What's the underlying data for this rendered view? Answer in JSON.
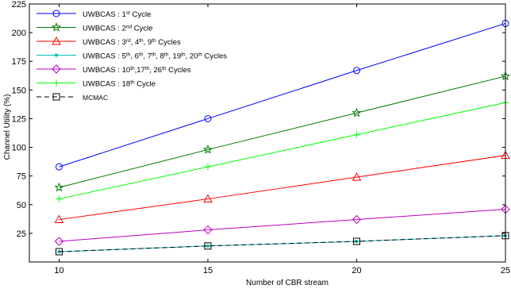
{
  "chart_data": {
    "type": "line",
    "title": "",
    "xlabel": "Number of CBR stream",
    "ylabel": "Channel Utility (%)",
    "x": [
      10,
      15,
      20,
      25
    ],
    "xlim": [
      9,
      25
    ],
    "ylim": [
      0,
      225
    ],
    "xticks": [
      "10",
      "15",
      "20",
      "25"
    ],
    "yticks": [
      "25",
      "50",
      "75",
      "100",
      "125",
      "150",
      "175",
      "200",
      "225"
    ],
    "grid": false,
    "legend_position": "top-left",
    "series": [
      {
        "name": "UWBCAS : 1st Cycle",
        "legend": [
          {
            "t": "UWBCAS : 1"
          },
          {
            "t": "st",
            "sup": true
          },
          {
            "t": " Cycle"
          }
        ],
        "values": [
          83,
          125,
          167,
          208
        ],
        "color": "#0000ff",
        "marker": "circle",
        "dash": "solid"
      },
      {
        "name": "UWBCAS : 2nd Cycle",
        "legend": [
          {
            "t": "UWBCAS : 2"
          },
          {
            "t": "nd",
            "sup": true
          },
          {
            "t": " Cycle"
          }
        ],
        "values": [
          65,
          98,
          130,
          162
        ],
        "color": "#007a00",
        "marker": "star",
        "dash": "solid"
      },
      {
        "name": "UWBCAS : 3rd, 4th, 9th Cycles",
        "legend": [
          {
            "t": "UWBCAS : 3"
          },
          {
            "t": "rd",
            "sup": true
          },
          {
            "t": ", 4"
          },
          {
            "t": "th",
            "sup": true
          },
          {
            "t": ", 9"
          },
          {
            "t": "th",
            "sup": true
          },
          {
            "t": " Cycles"
          }
        ],
        "values": [
          37,
          55,
          74,
          93
        ],
        "color": "#ff0000",
        "marker": "triangle",
        "dash": "solid"
      },
      {
        "name": "UWBCAS : 5th, 6th, 7th, 8th, 19th, 20th Cycles",
        "legend": [
          {
            "t": "UWBCAS : 5"
          },
          {
            "t": "th",
            "sup": true
          },
          {
            "t": ", 6"
          },
          {
            "t": "th",
            "sup": true
          },
          {
            "t": ", 7"
          },
          {
            "t": "th",
            "sup": true
          },
          {
            "t": ", 8"
          },
          {
            "t": "th",
            "sup": true
          },
          {
            "t": ", 19"
          },
          {
            "t": "th",
            "sup": true
          },
          {
            "t": ", 20"
          },
          {
            "t": "th",
            "sup": true
          },
          {
            "t": " Cycles"
          }
        ],
        "values": [
          9,
          14,
          18,
          23
        ],
        "color": "#00c0c0",
        "marker": "dot",
        "dash": "solid"
      },
      {
        "name": "UWBCAS : 10th,17th, 26th Cycles",
        "legend": [
          {
            "t": "UWBCAS : 10"
          },
          {
            "t": "th",
            "sup": true
          },
          {
            "t": ",17"
          },
          {
            "t": "th",
            "sup": true
          },
          {
            "t": ", 26"
          },
          {
            "t": "th",
            "sup": true
          },
          {
            "t": " Cycles"
          }
        ],
        "values": [
          18,
          28,
          37,
          46
        ],
        "color": "#bf00bf",
        "marker": "diamond",
        "dash": "solid"
      },
      {
        "name": "UWBCAS : 18th Cycle",
        "legend": [
          {
            "t": "UWBCAS : 18"
          },
          {
            "t": "th",
            "sup": true
          },
          {
            "t": " Cycle"
          }
        ],
        "values": [
          55,
          83,
          111,
          139
        ],
        "color": "#00ff00",
        "marker": "plus",
        "dash": "solid"
      },
      {
        "name": "MCMAC",
        "legend": [
          {
            "t": "MCMAC"
          }
        ],
        "values": [
          9,
          14,
          18,
          23
        ],
        "color": "#000000",
        "marker": "square",
        "dash": "dashed"
      }
    ]
  }
}
